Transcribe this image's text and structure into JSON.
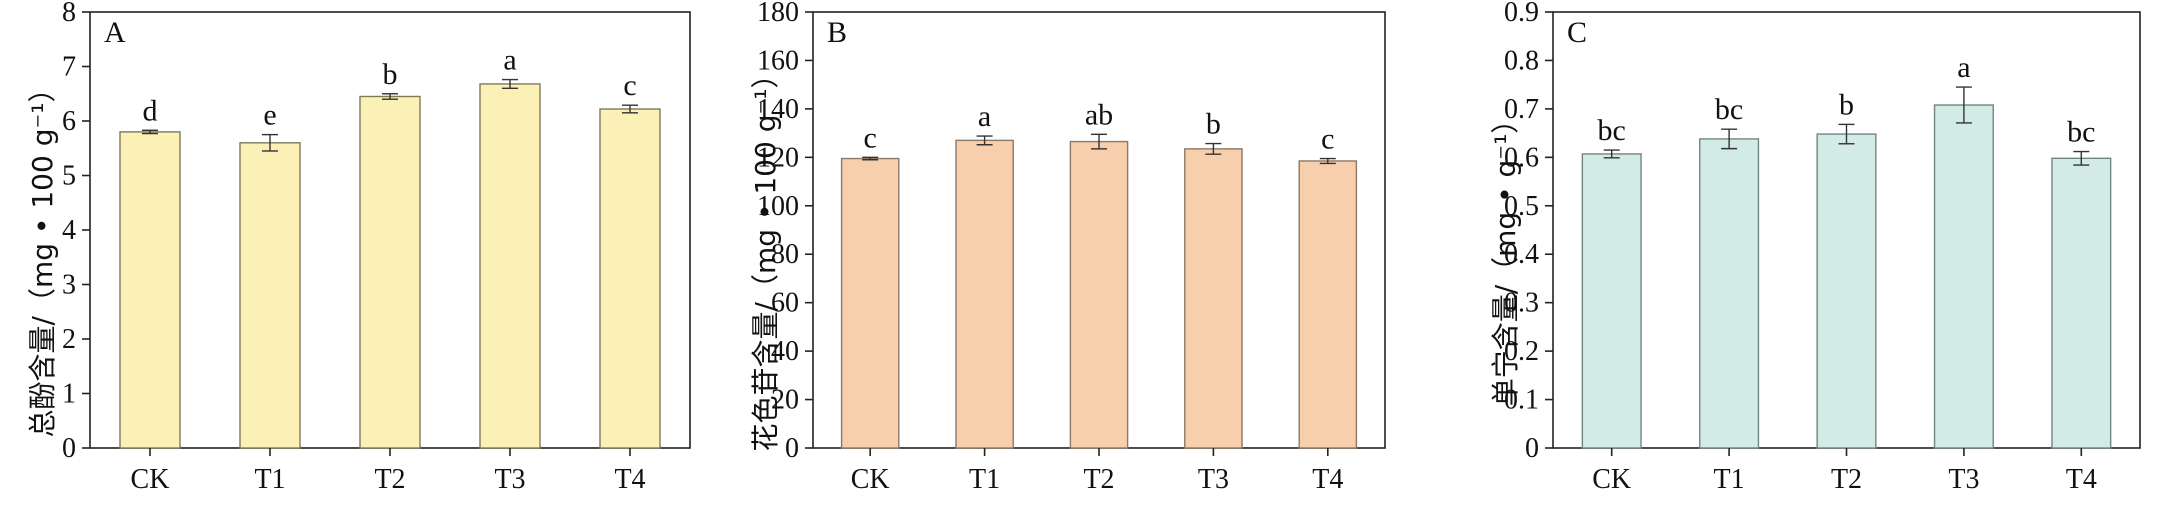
{
  "chart_data": [
    {
      "type": "bar",
      "panel": "A",
      "categories": [
        "CK",
        "T1",
        "T2",
        "T3",
        "T4"
      ],
      "values": [
        5.8,
        5.6,
        6.45,
        6.68,
        6.22
      ],
      "errors": [
        0.03,
        0.15,
        0.05,
        0.08,
        0.07
      ],
      "significance": [
        "d",
        "e",
        "b",
        "a",
        "c"
      ],
      "ylabel": "总酚含量/（mg • 100 g⁻¹）",
      "ylim": [
        0,
        8
      ],
      "yticks": [
        "0",
        "1",
        "2",
        "3",
        "4",
        "5",
        "6",
        "7",
        "8"
      ],
      "bar_color": "#fbf0b5",
      "bar_edge": "#7f7a58"
    },
    {
      "type": "bar",
      "panel": "B",
      "categories": [
        "CK",
        "T1",
        "T2",
        "T3",
        "T4"
      ],
      "values": [
        119.5,
        127.0,
        126.5,
        123.5,
        118.5
      ],
      "errors": [
        0.5,
        1.8,
        3.0,
        2.2,
        1.0
      ],
      "significance": [
        "c",
        "a",
        "ab",
        "b",
        "c"
      ],
      "ylabel": "花色苷含量/（mg • 100 g⁻¹）",
      "ylim": [
        0,
        180
      ],
      "yticks": [
        "0",
        "20",
        "40",
        "60",
        "80",
        "100",
        "120",
        "140",
        "160",
        "180"
      ],
      "bar_color": "#f8cfac",
      "bar_edge": "#8a7868"
    },
    {
      "type": "bar",
      "panel": "C",
      "categories": [
        "CK",
        "T1",
        "T2",
        "T3",
        "T4"
      ],
      "values": [
        0.607,
        0.638,
        0.648,
        0.708,
        0.598
      ],
      "errors": [
        0.008,
        0.02,
        0.02,
        0.037,
        0.014
      ],
      "significance": [
        "bc",
        "bc",
        "b",
        "a",
        "bc"
      ],
      "ylabel": "单宁含量/（mg • g⁻¹）",
      "ylim": [
        0,
        0.9
      ],
      "yticks": [
        "0",
        "0.1",
        "0.2",
        "0.3",
        "0.4",
        "0.5",
        "0.6",
        "0.7",
        "0.8",
        "0.9"
      ],
      "bar_color": "#d3ebe6",
      "bar_edge": "#74857f"
    }
  ]
}
